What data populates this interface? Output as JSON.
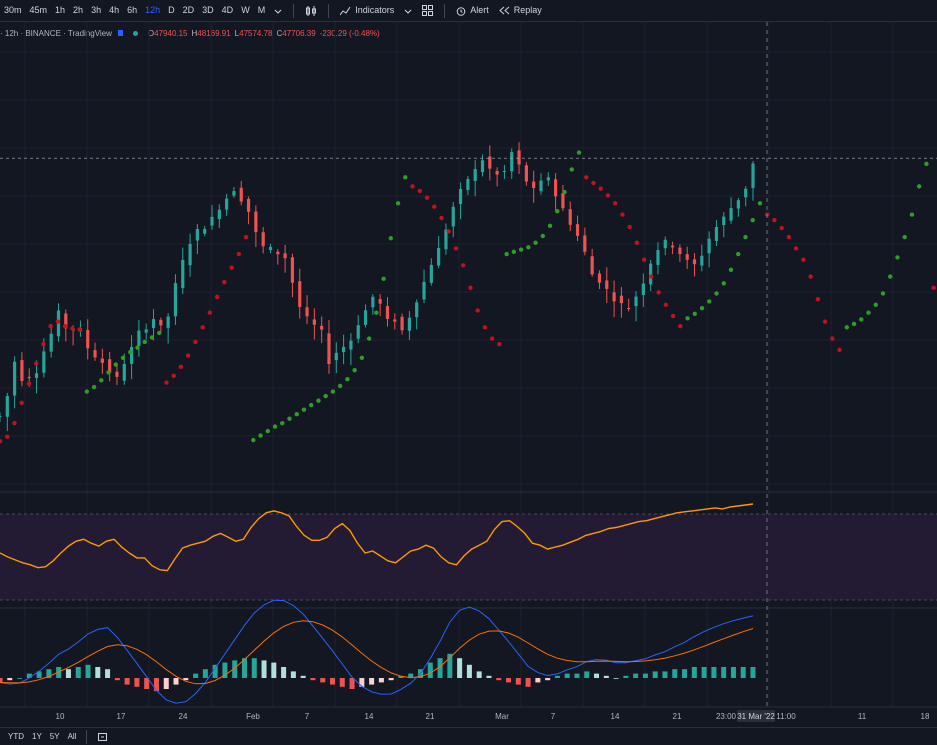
{
  "toolbar": {
    "timeframes": [
      "30m",
      "45m",
      "1h",
      "2h",
      "3h",
      "4h",
      "6h",
      "12h",
      "D",
      "2D",
      "3D",
      "4D",
      "W",
      "M"
    ],
    "active_timeframe": "12h",
    "indicators_label": "Indicators",
    "alert_label": "Alert",
    "replay_label": "Replay"
  },
  "legend": {
    "symbol": "· 12h · BINANCE · TradingView",
    "o_label": "O",
    "o_value": "47940.15",
    "h_label": "H",
    "h_value": "48169.91",
    "l_label": "L",
    "l_value": "47574.78",
    "c_label": "C",
    "c_value": "47706.39",
    "change": "-230.29 (-0.48%)"
  },
  "time_axis": {
    "labels": [
      "10",
      "17",
      "24",
      "Feb",
      "7",
      "14",
      "21",
      "Mar",
      "7",
      "14",
      "21",
      "23:00",
      "11:00",
      "11",
      "18"
    ],
    "crosshair_label": "31 Mar '22"
  },
  "bottom": {
    "ranges": [
      "YTD",
      "1Y",
      "5Y",
      "All"
    ]
  },
  "colors": {
    "up": "#26a69a",
    "down": "#ef5350",
    "sar_up": "#2e9e26",
    "sar_down": "#c0131c",
    "rsi": "#ff9800",
    "macd": "#2962ff",
    "signal": "#ff6d00"
  },
  "chart_data": {
    "type": "candlestick",
    "price_series": [
      26,
      44,
      75,
      60,
      62,
      67,
      84,
      99,
      117,
      105,
      103,
      102,
      87,
      80,
      74,
      66,
      59,
      74,
      86,
      100,
      106,
      113,
      104,
      115,
      142,
      163,
      181,
      190,
      195,
      201,
      212,
      220,
      228,
      219,
      208,
      188,
      176,
      174,
      171,
      167,
      145,
      123,
      112,
      106,
      100,
      75,
      83,
      88,
      94,
      109,
      120,
      132,
      125,
      110,
      112,
      102,
      115,
      130,
      145,
      162,
      174,
      193,
      212,
      225,
      237,
      244,
      254,
      245,
      240,
      243,
      260,
      248,
      235,
      226,
      233,
      239,
      222,
      210,
      198,
      186,
      171,
      152,
      147,
      138,
      131,
      125,
      123,
      133,
      146,
      163,
      175,
      180,
      178,
      171,
      163,
      160,
      170,
      184,
      194,
      202,
      211,
      219,
      229,
      250
    ],
    "sar_series": [
      {
        "side": "down",
        "values": [
          4,
          8,
          20,
          38,
          55,
          73,
          90,
          106,
          110,
          106,
          104,
          103
        ]
      },
      {
        "side": "up",
        "values": [
          48,
          52,
          58,
          65,
          72,
          78,
          83,
          87,
          92,
          96,
          100
        ]
      },
      {
        "side": "down",
        "values": [
          56,
          62,
          70,
          80,
          92,
          105,
          118,
          132,
          145,
          158,
          170,
          185
        ]
      },
      {
        "side": "up",
        "values": [
          5,
          9,
          13,
          17,
          20,
          24,
          28,
          32,
          36,
          40,
          44,
          48,
          53,
          59,
          67,
          78,
          95,
          118,
          148,
          184,
          215,
          238
        ]
      },
      {
        "side": "down",
        "values": [
          230,
          226,
          220,
          212,
          202,
          190,
          175,
          160,
          140,
          120,
          105,
          95,
          90
        ]
      },
      {
        "side": "up",
        "values": [
          170,
          172,
          174,
          176,
          180,
          186,
          195,
          208,
          225,
          245,
          260
        ]
      },
      {
        "side": "down",
        "values": [
          238,
          233,
          228,
          222,
          215,
          205,
          194,
          180,
          165,
          150,
          136,
          125,
          115,
          106
        ]
      },
      {
        "side": "up",
        "values": [
          113,
          117,
          122,
          128,
          135,
          144,
          156,
          170,
          185,
          200,
          215
        ]
      },
      {
        "side": "down",
        "values": [
          205,
          200,
          193,
          185,
          175,
          165,
          150,
          130,
          110,
          95,
          85
        ]
      },
      {
        "side": "up",
        "values": [
          105,
          108,
          112,
          118,
          125,
          135,
          150,
          167,
          185,
          205,
          230,
          250
        ]
      },
      {
        "side": "down",
        "values": [
          140,
          137,
          133,
          128,
          122,
          117
        ]
      },
      {
        "side": "up",
        "values": [
          120,
          125,
          131,
          138,
          147,
          158,
          170,
          184,
          198,
          213,
          230,
          245,
          260
        ]
      }
    ],
    "rsi_series": [
      50,
      46,
      43,
      40,
      38,
      35,
      36,
      42,
      50,
      57,
      62,
      64,
      60,
      57,
      62,
      64,
      56,
      50,
      45,
      45,
      37,
      33,
      32,
      44,
      55,
      58,
      60,
      62,
      67,
      70,
      66,
      62,
      64,
      76,
      85,
      91,
      93,
      91,
      88,
      77,
      68,
      63,
      63,
      66,
      75,
      80,
      73,
      60,
      50,
      52,
      47,
      42,
      40,
      46,
      52,
      54,
      58,
      55,
      46,
      40,
      38,
      47,
      54,
      58,
      62,
      74,
      82,
      83,
      77,
      70,
      60,
      58,
      54,
      56,
      58,
      61,
      64,
      68,
      70,
      72,
      75,
      76,
      78,
      80,
      82,
      83,
      85,
      87,
      89,
      91,
      92,
      93,
      94,
      95,
      96,
      95,
      97,
      98,
      99,
      100
    ],
    "macd_hist": [
      -2,
      -1,
      0,
      2,
      3,
      4,
      5,
      4,
      5,
      6,
      5,
      4,
      -1,
      -3,
      -4,
      -5,
      -6,
      -5,
      -3,
      -1,
      2,
      4,
      6,
      7,
      8,
      9,
      9,
      8,
      7,
      5,
      3,
      1,
      -1,
      -2,
      -3,
      -4,
      -5,
      -4,
      -3,
      -2,
      -1,
      1,
      2,
      4,
      7,
      9,
      11,
      9,
      6,
      3,
      1,
      -1,
      -2,
      -3,
      -4,
      -2,
      -1,
      1,
      2,
      2,
      3,
      2,
      1,
      0,
      1,
      2,
      2,
      3,
      3,
      4,
      4,
      5,
      5,
      5,
      5,
      5,
      5,
      5
    ]
  }
}
